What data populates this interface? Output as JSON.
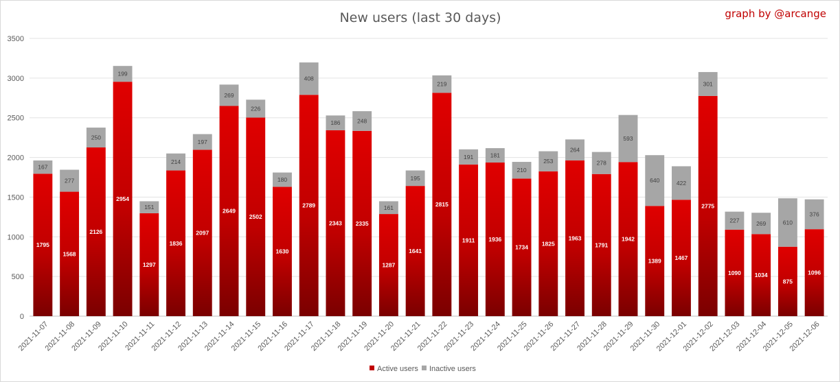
{
  "chart_data": {
    "type": "bar",
    "stacked": true,
    "title": "New users (last 30 days)",
    "credit": "graph by @arcange",
    "categories": [
      "2021-11-07",
      "2021-11-08",
      "2021-11-09",
      "2021-11-10",
      "2021-11-11",
      "2021-11-12",
      "2021-11-13",
      "2021-11-14",
      "2021-11-15",
      "2021-11-16",
      "2021-11-17",
      "2021-11-18",
      "2021-11-19",
      "2021-11-20",
      "2021-11-21",
      "2021-11-22",
      "2021-11-23",
      "2021-11-24",
      "2021-11-25",
      "2021-11-26",
      "2021-11-27",
      "2021-11-28",
      "2021-11-29",
      "2021-11-30",
      "2021-12-01",
      "2021-12-02",
      "2021-12-03",
      "2021-12-04",
      "2021-12-05",
      "2021-12-06"
    ],
    "series": [
      {
        "name": "Active users",
        "color": "#c00000",
        "values": [
          1795,
          1568,
          2126,
          2954,
          1297,
          1836,
          2097,
          2649,
          2502,
          1630,
          2789,
          2343,
          2335,
          1287,
          1641,
          2815,
          1911,
          1936,
          1734,
          1825,
          1963,
          1791,
          1942,
          1389,
          1467,
          2775,
          1090,
          1034,
          875,
          1096
        ]
      },
      {
        "name": "Inactive users",
        "color": "#a6a6a6",
        "values": [
          167,
          277,
          250,
          199,
          151,
          214,
          197,
          269,
          226,
          180,
          408,
          186,
          248,
          161,
          195,
          219,
          191,
          181,
          210,
          253,
          264,
          278,
          593,
          640,
          422,
          301,
          227,
          269,
          610,
          376
        ]
      }
    ],
    "yticks": [
      0,
      500,
      1000,
      1500,
      2000,
      2500,
      3000,
      3500
    ],
    "ylim": [
      0,
      3500
    ],
    "grid": true,
    "legend_position": "bottom"
  }
}
